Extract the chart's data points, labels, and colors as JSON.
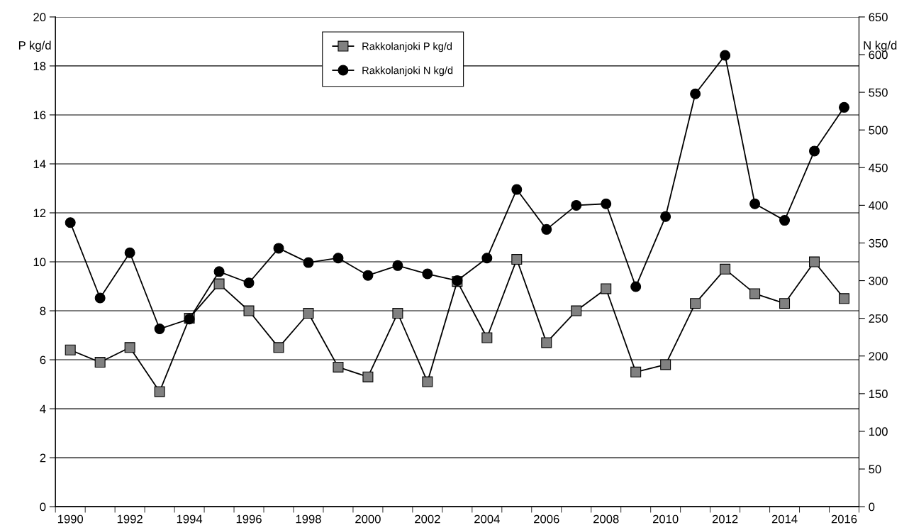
{
  "chart_data": {
    "type": "line",
    "categories": [
      "1990",
      null,
      "1992",
      null,
      "1994",
      null,
      "1996",
      null,
      "1998",
      null,
      "2000",
      null,
      "2002",
      null,
      "2004",
      null,
      "2006",
      null,
      "2008",
      null,
      "2010",
      null,
      "2012",
      null,
      "2014",
      null,
      "2016"
    ],
    "ylabel": "P kg/d",
    "y2label": "N kg/d",
    "ylim": [
      0,
      20
    ],
    "yticks": [
      0,
      2,
      4,
      6,
      8,
      10,
      12,
      14,
      16,
      18,
      20
    ],
    "y2lim": [
      0,
      650
    ],
    "y2ticks": [
      0,
      50,
      100,
      150,
      200,
      250,
      300,
      350,
      400,
      450,
      500,
      550,
      600,
      650
    ],
    "grid": "y",
    "legend": "top",
    "line_style": "solid",
    "series": [
      {
        "name": "Rakkolanjoki P kg/d",
        "color": "#808080",
        "marker": "square",
        "values": [
          6.4,
          5.9,
          6.5,
          4.7,
          7.7,
          9.1,
          8.0,
          6.5,
          7.9,
          5.7,
          5.3,
          7.9,
          5.1,
          9.2,
          6.9,
          10.1,
          6.7,
          8.0,
          8.9,
          5.5,
          5.8,
          8.3,
          9.7,
          8.7,
          8.3,
          10.0,
          8.5
        ]
      },
      {
        "name": "Rakkolanjoki N kg/d",
        "color": "#000000",
        "marker": "circle",
        "axis": "y2",
        "values": [
          377,
          277,
          337,
          236,
          249,
          312,
          297,
          343,
          324,
          330,
          307,
          320,
          309,
          300,
          330,
          421,
          368,
          400,
          402,
          292,
          385,
          548,
          599,
          402,
          380,
          472,
          530
        ]
      }
    ]
  }
}
